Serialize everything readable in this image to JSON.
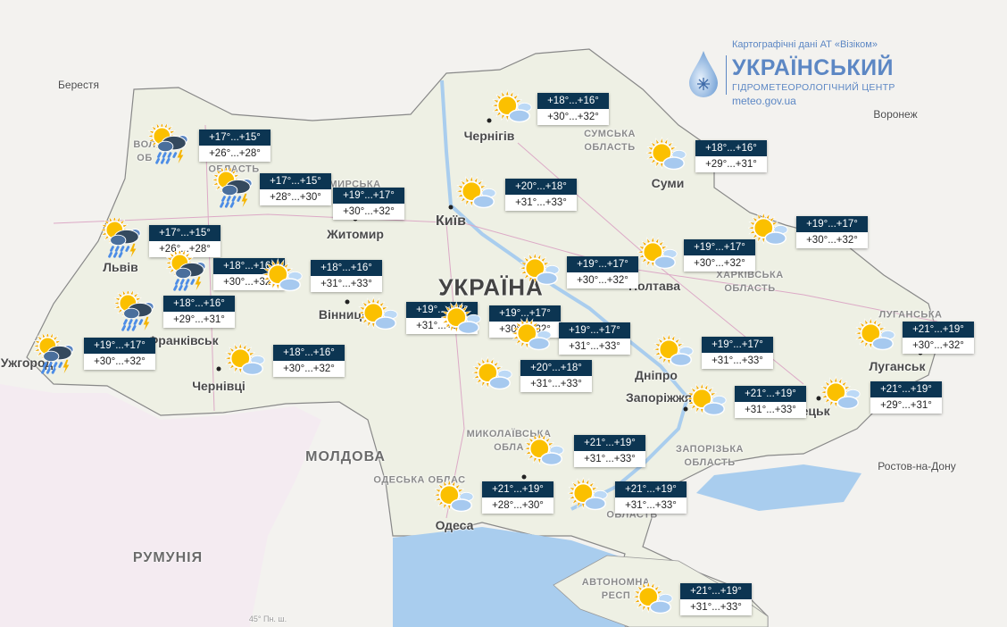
{
  "logo": {
    "credit": "Картографічні дані АТ «Візіком»",
    "title": "УКРАЇНСЬКИЙ",
    "subtitle": "ГІДРОМЕТЕОРОЛОГІЧНИЙ ЦЕНТР",
    "site": "meteo.gov.ua"
  },
  "colors": {
    "label_bg": "#0c3552",
    "sea": "#a9cdee",
    "land": "#eef0e4"
  },
  "labels": {
    "ukraine": "УКРАЇНА",
    "cities": [
      "Берестя",
      "Чернігів",
      "Суми",
      "Воронеж",
      "Київ",
      "Житомир",
      "Львів",
      "Полтава",
      "Вінниця",
      "Франківськ",
      "Ужгород",
      "Чернівці",
      "Дніпро",
      "Луганськ",
      "Запоріжжя",
      "Донецьк",
      "Одеса",
      "Ростов-на-Дону"
    ],
    "regions": [
      "СУМСЬКА ОБЛАСТЬ",
      "ХАРКІВСЬКА ОБЛАСТЬ",
      "ЛУГАНСЬКА",
      "МИКОЛАЇВСЬКА ОБЛА",
      "ЗАПОРІЗЬКА ОБЛАСТЬ",
      "ОДЕСЬКА ОБЛАС",
      "ОБЛАСТЬ",
      "АВТОНОМНА РЕСП",
      "ВОЛ ОБ",
      "ОБЛАСТЬ",
      "ОМИРСЬКА"
    ],
    "countries": [
      "МОЛДОВА",
      "РУМУНІЯ"
    ],
    "parallel": "45° Пн. ш."
  },
  "forecasts": [
    {
      "icon": "storm",
      "night": "+17°...+15°",
      "day": "+26°...+28°"
    },
    {
      "icon": "storm",
      "night": "+17°...+15°",
      "day": "+28°...+30°"
    },
    {
      "icon": "none",
      "night": "+19°...+17°",
      "day": "+30°...+32°"
    },
    {
      "icon": "storm",
      "night": "+17°...+15°",
      "day": "+26°...+28°"
    },
    {
      "icon": "storm",
      "night": "+18°...+16°",
      "day": "+30°...+32°"
    },
    {
      "icon": "sun-cloud",
      "night": "+18°...+16°",
      "day": "+31°...+33°"
    },
    {
      "icon": "storm",
      "night": "+18°...+16°",
      "day": "+29°...+31°"
    },
    {
      "icon": "storm",
      "night": "+19°...+17°",
      "day": "+30°...+32°"
    },
    {
      "icon": "sun-cloud",
      "night": "+18°...+16°",
      "day": "+30°...+32°"
    },
    {
      "icon": "sun-cloud",
      "night": "+19°...+17°",
      "day": "+31°...+33°"
    },
    {
      "icon": "sun-cloud",
      "night": "+20°...+18°",
      "day": "+31°...+33°"
    },
    {
      "icon": "sun-cloud",
      "night": "+18°...+16°",
      "day": "+30°...+32°"
    },
    {
      "icon": "sun-cloud",
      "night": "+18°...+16°",
      "day": "+29°...+31°"
    },
    {
      "icon": "sun-cloud",
      "night": "+19°...+17°",
      "day": "+30°...+32°"
    },
    {
      "icon": "sun-cloud",
      "night": "+19°...+17°",
      "day": "+30°...+32°"
    },
    {
      "icon": "sun-cloud",
      "night": "+19°...+17°",
      "day": "+30°...+32°"
    },
    {
      "icon": "sun-cloud",
      "night": "+19°...+17°",
      "day": "+30°...+32°"
    },
    {
      "icon": "sun-cloud",
      "night": "+19°...+17°",
      "day": "+31°...+33°"
    },
    {
      "icon": "sun-cloud",
      "night": "+20°...+18°",
      "day": "+31°...+33°"
    },
    {
      "icon": "sun-cloud",
      "night": "+19°...+17°",
      "day": "+31°...+33°"
    },
    {
      "icon": "sun-cloud",
      "night": "+21°...+19°",
      "day": "+31°...+33°"
    },
    {
      "icon": "sun-cloud",
      "night": "+21°...+19°",
      "day": "+29°...+31°"
    },
    {
      "icon": "sun-cloud",
      "night": "+21°...+19°",
      "day": "+30°...+32°"
    },
    {
      "icon": "sun-cloud",
      "night": "+21°...+19°",
      "day": "+31°...+33°"
    },
    {
      "icon": "sun-cloud",
      "night": "+21°...+19°",
      "day": "+28°...+30°"
    },
    {
      "icon": "sun-cloud",
      "night": "+21°...+19°",
      "day": "+31°...+33°"
    },
    {
      "icon": "sun-cloud",
      "night": "+21°...+19°",
      "day": "+31°...+33°"
    }
  ]
}
